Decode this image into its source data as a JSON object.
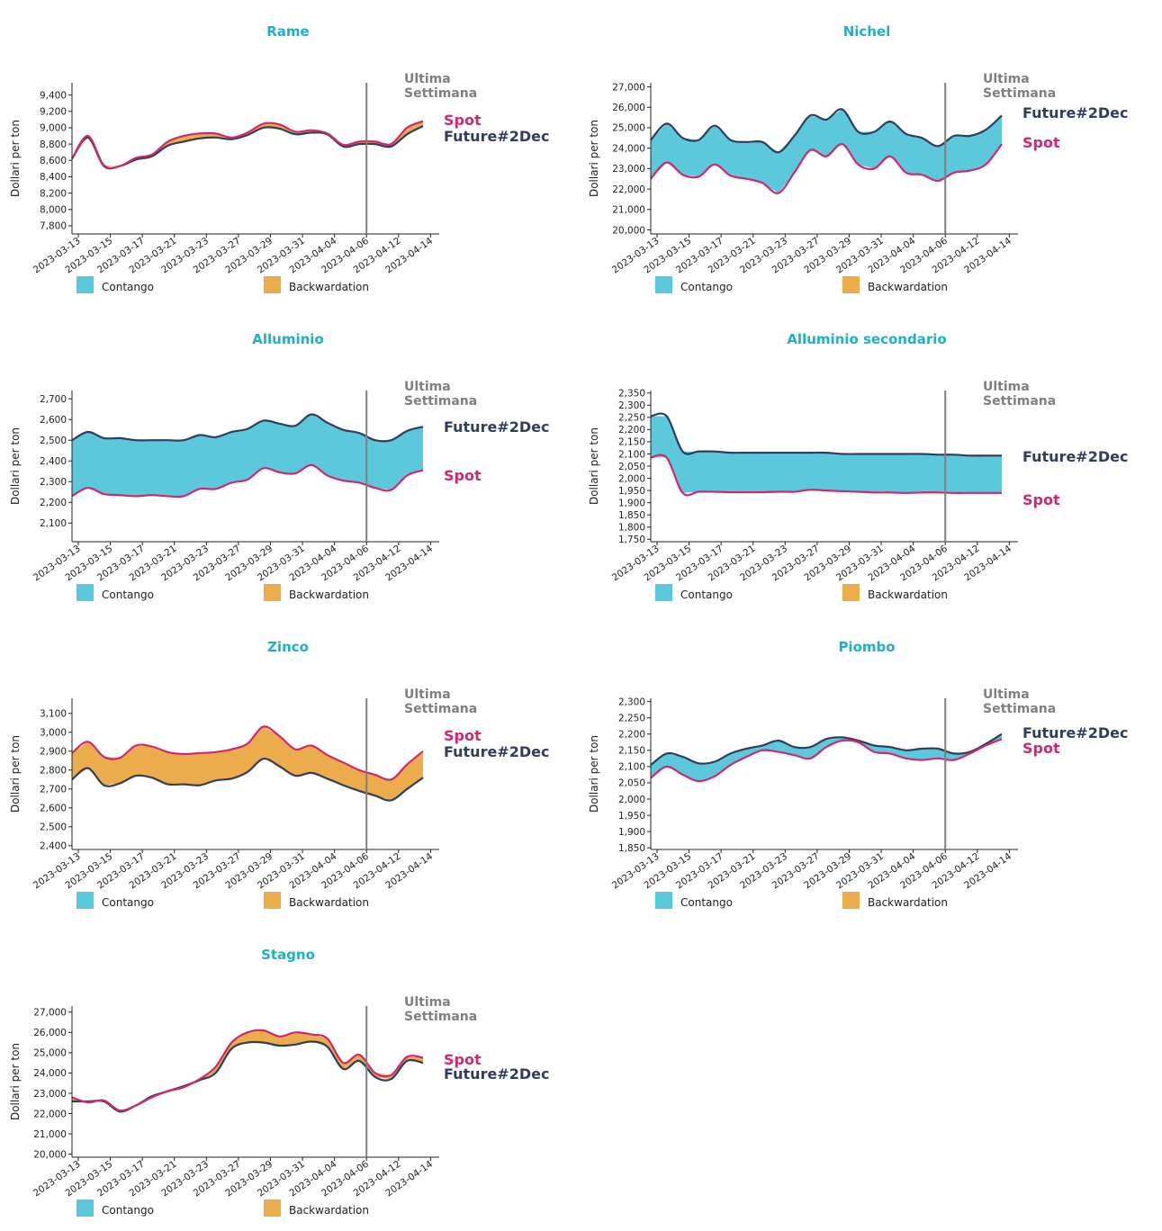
{
  "colors": {
    "title": "#1fb0c9",
    "contango": "#5bc8dc",
    "backwardation": "#ecac4c",
    "spot": "#d0286e",
    "future": "#2e3e5c",
    "last_week": "#7f7f7f"
  },
  "common": {
    "ylabel": "Dollari per ton",
    "last_week_label": [
      "Ultima",
      "Settimana"
    ],
    "legend": [
      "Contango",
      "Backwardation"
    ],
    "spot_label": "Spot",
    "future_label": "Future#2Dec",
    "marker_date": "2023-04-06"
  },
  "chart_data": [
    {
      "type": "area",
      "title": "Rame",
      "xlabel": "",
      "ylabel": "Dollari per ton",
      "categories": [
        "2023-03-13",
        "2023-03-15",
        "2023-03-17",
        "2023-03-21",
        "2023-03-23",
        "2023-03-27",
        "2023-03-29",
        "2023-03-31",
        "2023-04-04",
        "2023-04-06",
        "2023-04-12",
        "2023-04-14"
      ],
      "yticks": [
        7800,
        8000,
        8200,
        8400,
        8600,
        8800,
        9000,
        9200,
        9400
      ],
      "ylim": [
        7700,
        9550
      ],
      "series": [
        {
          "name": "Spot",
          "x": [
            0,
            0.5,
            1,
            1.5,
            2,
            2.5,
            3,
            3.5,
            4,
            4.5,
            5,
            5.5,
            6,
            6.5,
            7,
            7.5,
            8,
            8.5,
            9,
            9.5,
            10,
            10.5,
            11
          ],
          "values": [
            8620,
            8900,
            8540,
            8530,
            8630,
            8670,
            8830,
            8900,
            8930,
            8930,
            8880,
            8940,
            9050,
            9040,
            8950,
            8970,
            8930,
            8790,
            8830,
            8830,
            8800,
            9000,
            9080
          ]
        },
        {
          "name": "Future#2Dec",
          "x": [
            0,
            0.5,
            1,
            1.5,
            2,
            2.5,
            3,
            3.5,
            4,
            4.5,
            5,
            5.5,
            6,
            6.5,
            7,
            7.5,
            8,
            8.5,
            9,
            9.5,
            10,
            10.5,
            11
          ],
          "values": [
            8620,
            8880,
            8530,
            8530,
            8610,
            8650,
            8780,
            8830,
            8870,
            8880,
            8860,
            8910,
            9000,
            8990,
            8920,
            8940,
            8920,
            8770,
            8800,
            8800,
            8770,
            8920,
            9020
          ]
        }
      ]
    },
    {
      "type": "area",
      "title": "Nichel",
      "xlabel": "",
      "ylabel": "Dollari per ton",
      "categories": [
        "2023-03-13",
        "2023-03-15",
        "2023-03-17",
        "2023-03-21",
        "2023-03-23",
        "2023-03-27",
        "2023-03-29",
        "2023-03-31",
        "2023-04-04",
        "2023-04-06",
        "2023-04-12",
        "2023-04-14"
      ],
      "yticks": [
        20000,
        21000,
        22000,
        23000,
        24000,
        25000,
        26000,
        27000
      ],
      "ylim": [
        19800,
        27200
      ],
      "series": [
        {
          "name": "Spot",
          "x": [
            0,
            0.5,
            1,
            1.5,
            2,
            2.5,
            3,
            3.5,
            4,
            4.5,
            5,
            5.5,
            6,
            6.5,
            7,
            7.5,
            8,
            8.5,
            9,
            9.5,
            10,
            10.5,
            11
          ],
          "values": [
            22500,
            23300,
            22700,
            22600,
            23200,
            22650,
            22500,
            22300,
            21800,
            22800,
            23900,
            23600,
            24200,
            23200,
            23000,
            23600,
            22800,
            22700,
            22400,
            22800,
            22900,
            23200,
            24200
          ]
        },
        {
          "name": "Future#2Dec",
          "x": [
            0,
            0.5,
            1,
            1.5,
            2,
            2.5,
            3,
            3.5,
            4,
            4.5,
            5,
            5.5,
            6,
            6.5,
            7,
            7.5,
            8,
            8.5,
            9,
            9.5,
            10,
            10.5,
            11
          ],
          "values": [
            24400,
            25200,
            24500,
            24400,
            25100,
            24400,
            24300,
            24300,
            23800,
            24600,
            25600,
            25400,
            25900,
            24800,
            24800,
            25300,
            24700,
            24500,
            24100,
            24600,
            24600,
            24900,
            25600
          ]
        }
      ]
    },
    {
      "type": "area",
      "title": "Alluminio",
      "xlabel": "",
      "ylabel": "Dollari per ton",
      "categories": [
        "2023-03-13",
        "2023-03-15",
        "2023-03-17",
        "2023-03-21",
        "2023-03-23",
        "2023-03-27",
        "2023-03-29",
        "2023-03-31",
        "2023-04-04",
        "2023-04-06",
        "2023-04-12",
        "2023-04-14"
      ],
      "yticks": [
        2100,
        2200,
        2300,
        2400,
        2500,
        2600,
        2700
      ],
      "ylim": [
        2010,
        2740
      ],
      "series": [
        {
          "name": "Spot",
          "x": [
            0,
            0.5,
            1,
            1.5,
            2,
            2.5,
            3,
            3.5,
            4,
            4.5,
            5,
            5.5,
            6,
            6.5,
            7,
            7.5,
            8,
            8.5,
            9,
            9.5,
            10,
            10.5,
            11
          ],
          "values": [
            2230,
            2270,
            2240,
            2235,
            2230,
            2235,
            2230,
            2230,
            2265,
            2265,
            2295,
            2310,
            2365,
            2345,
            2340,
            2380,
            2330,
            2305,
            2295,
            2270,
            2260,
            2330,
            2355
          ]
        },
        {
          "name": "Future#2Dec",
          "x": [
            0,
            0.5,
            1,
            1.5,
            2,
            2.5,
            3,
            3.5,
            4,
            4.5,
            5,
            5.5,
            6,
            6.5,
            7,
            7.5,
            8,
            8.5,
            9,
            9.5,
            10,
            10.5,
            11
          ],
          "values": [
            2500,
            2540,
            2510,
            2510,
            2500,
            2500,
            2500,
            2500,
            2525,
            2515,
            2540,
            2555,
            2595,
            2580,
            2570,
            2625,
            2585,
            2550,
            2535,
            2500,
            2500,
            2545,
            2565
          ]
        }
      ]
    },
    {
      "type": "area",
      "title": "Alluminio secondario",
      "xlabel": "",
      "ylabel": "Dollari per ton",
      "categories": [
        "2023-03-13",
        "2023-03-15",
        "2023-03-17",
        "2023-03-21",
        "2023-03-23",
        "2023-03-27",
        "2023-03-29",
        "2023-03-31",
        "2023-04-04",
        "2023-04-06",
        "2023-04-12",
        "2023-04-14"
      ],
      "yticks": [
        1750,
        1800,
        1850,
        1900,
        1950,
        2000,
        2050,
        2100,
        2150,
        2200,
        2250,
        2300,
        2350
      ],
      "ylim": [
        1740,
        2360
      ],
      "series": [
        {
          "name": "Spot",
          "x": [
            0,
            0.5,
            1,
            1.5,
            2,
            2.5,
            3,
            3.5,
            4,
            4.5,
            5,
            5.5,
            6,
            6.5,
            7,
            7.5,
            8,
            8.5,
            9,
            9.5,
            10,
            10.5,
            11
          ],
          "values": [
            2085,
            2085,
            1940,
            1945,
            1945,
            1943,
            1943,
            1943,
            1945,
            1945,
            1953,
            1950,
            1947,
            1945,
            1942,
            1942,
            1940,
            1942,
            1942,
            1940,
            1940,
            1940,
            1940
          ]
        },
        {
          "name": "Future#2Dec",
          "x": [
            0,
            0.5,
            1,
            1.5,
            2,
            2.5,
            3,
            3.5,
            4,
            4.5,
            5,
            5.5,
            6,
            6.5,
            7,
            7.5,
            8,
            8.5,
            9,
            9.5,
            10,
            10.5,
            11
          ],
          "values": [
            2255,
            2255,
            2110,
            2110,
            2110,
            2105,
            2105,
            2105,
            2105,
            2105,
            2105,
            2105,
            2100,
            2100,
            2100,
            2100,
            2100,
            2100,
            2097,
            2097,
            2093,
            2093,
            2093
          ]
        }
      ]
    },
    {
      "type": "area",
      "title": "Zinco",
      "xlabel": "",
      "ylabel": "Dollari per ton",
      "categories": [
        "2023-03-13",
        "2023-03-15",
        "2023-03-17",
        "2023-03-21",
        "2023-03-23",
        "2023-03-27",
        "2023-03-29",
        "2023-03-31",
        "2023-04-04",
        "2023-04-06",
        "2023-04-12",
        "2023-04-14"
      ],
      "yticks": [
        2400,
        2500,
        2600,
        2700,
        2800,
        2900,
        3000,
        3100
      ],
      "ylim": [
        2380,
        3180
      ],
      "series": [
        {
          "name": "Spot",
          "x": [
            0,
            0.5,
            1,
            1.5,
            2,
            2.5,
            3,
            3.5,
            4,
            4.5,
            5,
            5.5,
            6,
            6.5,
            7,
            7.5,
            8,
            8.5,
            9,
            9.5,
            10,
            10.5,
            11
          ],
          "values": [
            2890,
            2950,
            2870,
            2865,
            2930,
            2925,
            2895,
            2885,
            2890,
            2895,
            2910,
            2940,
            3030,
            2980,
            2910,
            2930,
            2880,
            2840,
            2800,
            2775,
            2750,
            2830,
            2900
          ]
        },
        {
          "name": "Future#2Dec",
          "x": [
            0,
            0.5,
            1,
            1.5,
            2,
            2.5,
            3,
            3.5,
            4,
            4.5,
            5,
            5.5,
            6,
            6.5,
            7,
            7.5,
            8,
            8.5,
            9,
            9.5,
            10,
            10.5,
            11
          ],
          "values": [
            2750,
            2810,
            2720,
            2730,
            2770,
            2760,
            2725,
            2725,
            2720,
            2745,
            2755,
            2790,
            2860,
            2820,
            2770,
            2785,
            2755,
            2720,
            2690,
            2665,
            2640,
            2700,
            2760
          ]
        }
      ]
    },
    {
      "type": "area",
      "title": "Piombo",
      "xlabel": "",
      "ylabel": "Dollari per ton",
      "categories": [
        "2023-03-13",
        "2023-03-15",
        "2023-03-17",
        "2023-03-21",
        "2023-03-23",
        "2023-03-27",
        "2023-03-29",
        "2023-03-31",
        "2023-04-04",
        "2023-04-06",
        "2023-04-12",
        "2023-04-14"
      ],
      "yticks": [
        1850,
        1900,
        1950,
        2000,
        2050,
        2100,
        2150,
        2200,
        2250,
        2300
      ],
      "ylim": [
        1845,
        2310
      ],
      "series": [
        {
          "name": "Spot",
          "x": [
            0,
            0.5,
            1,
            1.5,
            2,
            2.5,
            3,
            3.5,
            4,
            4.5,
            5,
            5.5,
            6,
            6.5,
            7,
            7.5,
            8,
            8.5,
            9,
            9.5,
            10,
            10.5,
            11
          ],
          "values": [
            2065,
            2100,
            2075,
            2055,
            2070,
            2105,
            2130,
            2150,
            2145,
            2135,
            2125,
            2160,
            2180,
            2175,
            2145,
            2140,
            2125,
            2120,
            2125,
            2120,
            2140,
            2165,
            2185
          ]
        },
        {
          "name": "Future#2Dec",
          "x": [
            0,
            0.5,
            1,
            1.5,
            2,
            2.5,
            3,
            3.5,
            4,
            4.5,
            5,
            5.5,
            6,
            6.5,
            7,
            7.5,
            8,
            8.5,
            9,
            9.5,
            10,
            10.5,
            11
          ],
          "values": [
            2105,
            2140,
            2130,
            2110,
            2115,
            2140,
            2155,
            2165,
            2180,
            2160,
            2160,
            2185,
            2190,
            2180,
            2165,
            2160,
            2150,
            2155,
            2155,
            2140,
            2145,
            2170,
            2200
          ]
        }
      ]
    },
    {
      "type": "area",
      "title": "Stagno",
      "xlabel": "",
      "ylabel": "Dollari per ton",
      "categories": [
        "2023-03-13",
        "2023-03-15",
        "2023-03-17",
        "2023-03-21",
        "2023-03-23",
        "2023-03-27",
        "2023-03-29",
        "2023-03-31",
        "2023-04-04",
        "2023-04-06",
        "2023-04-12",
        "2023-04-14"
      ],
      "yticks": [
        20000,
        21000,
        22000,
        23000,
        24000,
        25000,
        26000,
        27000
      ],
      "ylim": [
        19850,
        27300
      ],
      "series": [
        {
          "name": "Spot",
          "x": [
            0,
            0.5,
            1,
            1.5,
            2,
            2.5,
            3,
            3.5,
            4,
            4.5,
            5,
            5.5,
            6,
            6.5,
            7,
            7.5,
            8,
            8.5,
            9,
            9.5,
            10,
            10.5,
            11
          ],
          "values": [
            22800,
            22550,
            22650,
            22150,
            22400,
            22800,
            23100,
            23300,
            23700,
            24300,
            25500,
            26000,
            26100,
            25800,
            26000,
            25900,
            25700,
            24500,
            24900,
            24000,
            23900,
            24800,
            24750
          ]
        },
        {
          "name": "Future#2Dec",
          "x": [
            0,
            0.5,
            1,
            1.5,
            2,
            2.5,
            3,
            3.5,
            4,
            4.5,
            5,
            5.5,
            6,
            6.5,
            7,
            7.5,
            8,
            8.5,
            9,
            9.5,
            10,
            10.5,
            11
          ],
          "values": [
            22600,
            22600,
            22600,
            22100,
            22400,
            22850,
            23100,
            23350,
            23650,
            24000,
            25200,
            25500,
            25500,
            25350,
            25400,
            25550,
            25300,
            24200,
            24600,
            23800,
            23700,
            24600,
            24500
          ]
        }
      ]
    }
  ]
}
